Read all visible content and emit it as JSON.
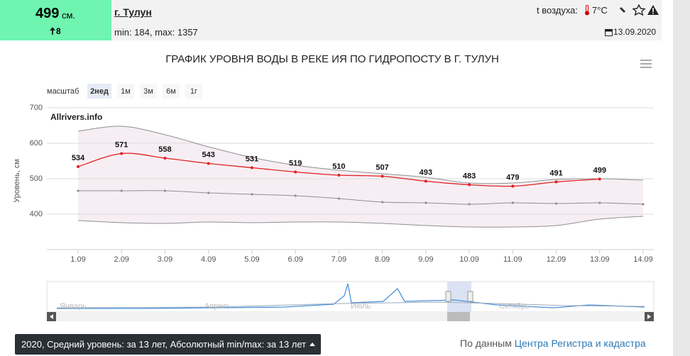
{
  "header": {
    "value": 499,
    "unit": "см.",
    "change": 8,
    "station": "г. Тулун",
    "minmax": "min: 184, max: 1357",
    "air_label": "t воздуха:",
    "air_temp": "7°C",
    "date": "13.09.2020"
  },
  "range_selector": {
    "label": "масштаб",
    "buttons": [
      "2нед",
      "1м",
      "3м",
      "6м",
      "1г"
    ],
    "selected": 0
  },
  "chart_data": {
    "type": "line",
    "title": "ГРАФИК УРОВНЯ ВОДЫ В РЕКЕ ИЯ ПО ГИДРОПОСТУ В Г. ТУЛУН",
    "watermark": "Allrivers.info",
    "y_label": "Уровень, см",
    "categories": [
      "1.09",
      "2.09",
      "3.09",
      "4.09",
      "5.09",
      "6.09",
      "7.09",
      "8.09",
      "9.09",
      "10.09",
      "11.09",
      "12.09",
      "13.09",
      "14.09"
    ],
    "series": [
      {
        "color": "#e02020",
        "values": [
          534,
          571,
          558,
          543,
          531,
          519,
          510,
          507,
          493,
          483,
          479,
          491,
          499,
          null
        ]
      },
      {
        "color": "#909090",
        "values": [
          466,
          466,
          466,
          460,
          456,
          452,
          444,
          434,
          432,
          428,
          432,
          430,
          432,
          428
        ]
      },
      {
        "color": "#909090",
        "values": [
          634,
          648,
          624,
          590,
          560,
          538,
          524,
          514,
          504,
          488,
          488,
          498,
          500,
          496
        ]
      },
      {
        "color": "#909090",
        "values": [
          382,
          376,
          374,
          378,
          376,
          378,
          378,
          374,
          368,
          364,
          364,
          368,
          386,
          394
        ]
      }
    ],
    "ylim": [
      300,
      700
    ],
    "yticks": [
      400,
      500,
      600,
      700
    ],
    "grid": true
  },
  "navigator": {
    "labels": [
      "Январь",
      "Апрель",
      "Июль",
      "Октябрь"
    ]
  },
  "footer": {
    "button": "2020, Средний уровень: за 13 лет, Абсолютный min/max: за 13 лет",
    "source_prefix": "По данным",
    "source_link": "Центра Регистра и кадастра"
  }
}
